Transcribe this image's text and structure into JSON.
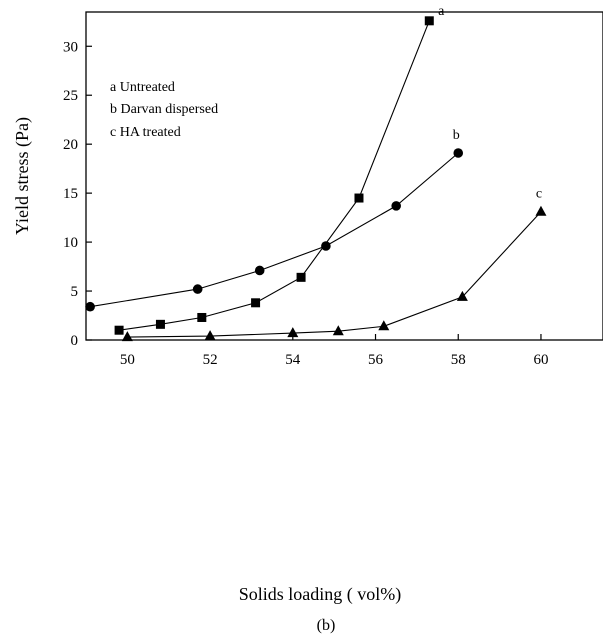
{
  "chart_data": {
    "type": "line",
    "xlabel": "Solids loading ( vol%)",
    "ylabel": "Yield stress (Pa)",
    "caption": "(b)",
    "xlim": [
      49,
      61.5
    ],
    "ylim": [
      0,
      33.5
    ],
    "xticks": [
      50,
      52,
      54,
      56,
      58,
      60
    ],
    "yticks": [
      0,
      5,
      10,
      15,
      20,
      25,
      30
    ],
    "legend": [
      "a Untreated",
      "b Darvan dispersed",
      "c HA treated"
    ],
    "legend_position": "top-left",
    "series": [
      {
        "label": "a",
        "marker": "square",
        "x": [
          49.8,
          50.8,
          51.8,
          53.1,
          54.2,
          55.6,
          57.3
        ],
        "y": [
          1.0,
          1.6,
          2.3,
          3.8,
          6.4,
          14.5,
          32.6
        ]
      },
      {
        "label": "b",
        "marker": "circle",
        "x": [
          49.1,
          51.7,
          53.2,
          54.8,
          56.5,
          58.0
        ],
        "y": [
          3.4,
          5.2,
          7.1,
          9.6,
          13.7,
          19.1
        ]
      },
      {
        "label": "c",
        "marker": "triangle",
        "x": [
          50.0,
          52.0,
          54.0,
          55.1,
          56.2,
          58.1,
          60.0
        ],
        "y": [
          0.3,
          0.4,
          0.7,
          0.9,
          1.4,
          4.4,
          13.1
        ]
      }
    ]
  }
}
